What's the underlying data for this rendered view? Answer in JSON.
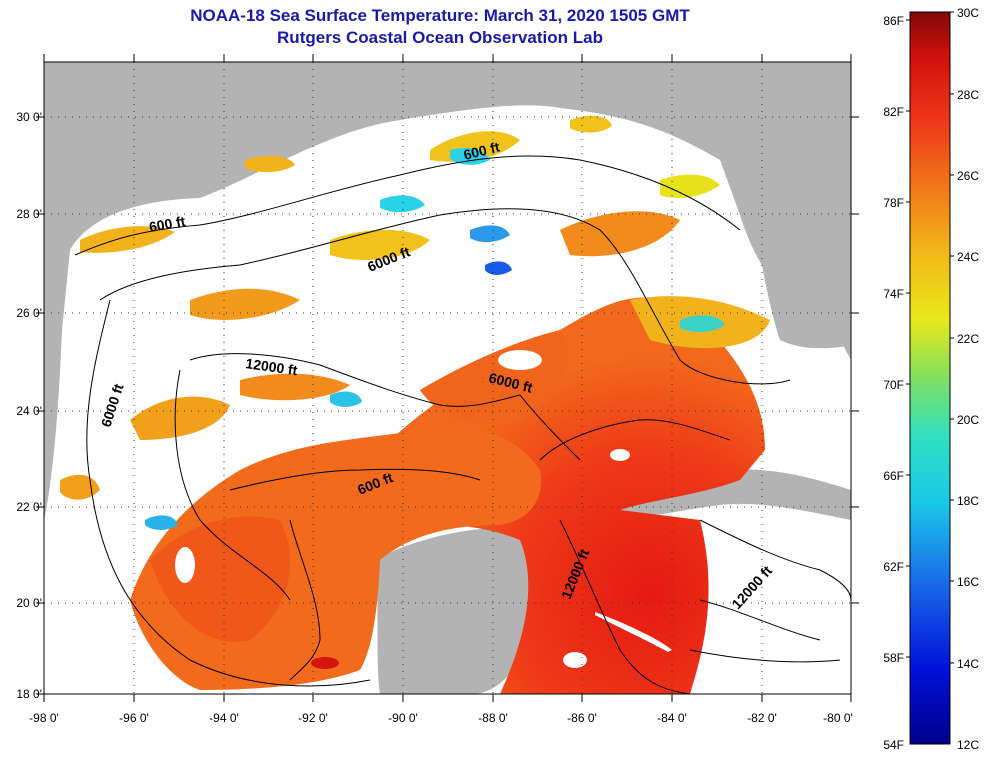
{
  "header": {
    "title_line1": "NOAA-18 Sea Surface Temperature:  March 31, 2020 1505 GMT",
    "title_line2": "Rutgers Coastal Ocean Observation Lab"
  },
  "map": {
    "lon_ticks": [
      "-98 0'",
      "-96 0'",
      "-94 0'",
      "-92 0'",
      "-90 0'",
      "-88 0'",
      "-86 0'",
      "-84 0'",
      "-82 0'",
      "-80 0'"
    ],
    "lat_ticks": [
      "30 0'",
      "28 0'",
      "26 0'",
      "24 0'",
      "22 0'",
      "20 0'",
      "18 0'"
    ],
    "contour_labels": [
      "600 ft",
      "600 ft",
      "6000 ft",
      "12000 ft",
      "6000 ft",
      "6000 ft",
      "600 ft",
      "12000 ft",
      "12000 ft"
    ]
  },
  "colorbar": {
    "f_labels": [
      "86F",
      "82F",
      "78F",
      "74F",
      "70F",
      "66F",
      "62F",
      "58F",
      "54F"
    ],
    "c_labels": [
      "30C",
      "28C",
      "26C",
      "24C",
      "22C",
      "20C",
      "18C",
      "16C",
      "14C",
      "12C"
    ]
  },
  "colors": {
    "land": "#b3b3b3",
    "cloud": "#ffffff",
    "title": "#1a1aa8",
    "warm": "#e8281a",
    "orange": "#f26a1c",
    "yellow": "#f2c21c",
    "cyan": "#2ad2e8",
    "blue": "#1a5ae8"
  }
}
